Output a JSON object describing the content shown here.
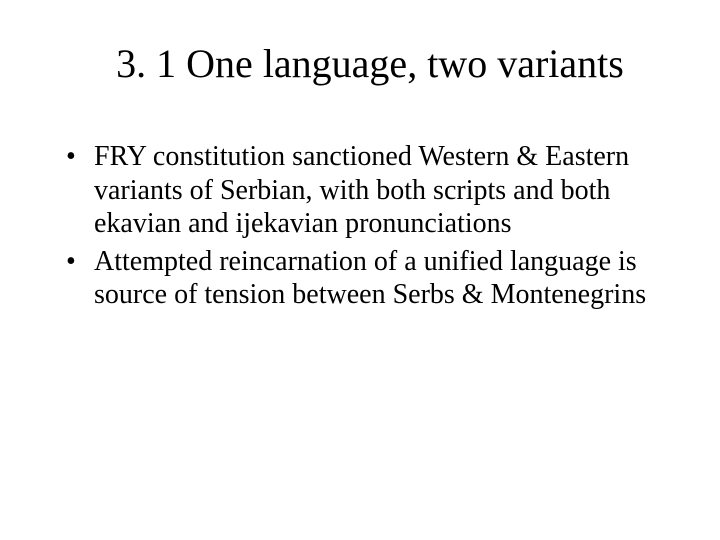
{
  "slide": {
    "title": "3. 1 One language, two variants",
    "bullets": [
      "FRY constitution sanctioned Western & Eastern variants of Serbian, with both scripts and both ekavian and ijekavian pronunciations",
      "Attempted reincarnation of a unified language is source of tension between Serbs & Montenegrins"
    ]
  },
  "style": {
    "background_color": "#ffffff",
    "text_color": "#000000",
    "title_fontsize": 40,
    "body_fontsize": 28,
    "font_family": "Times New Roman"
  }
}
